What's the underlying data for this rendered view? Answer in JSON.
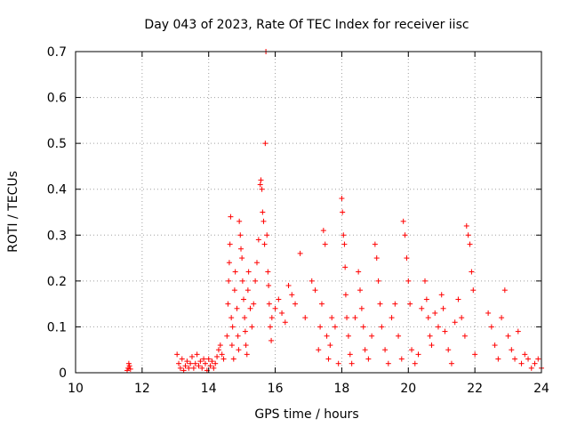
{
  "chart_data": {
    "type": "scatter",
    "title": "Day 043 of 2023, Rate Of TEC Index for receiver iisc",
    "xlabel": "GPS time / hours",
    "ylabel": "ROTI / TECUs",
    "xlim": [
      10,
      24
    ],
    "ylim": [
      0,
      0.7
    ],
    "xticks": [
      10,
      12,
      14,
      16,
      18,
      20,
      22,
      24
    ],
    "xtick_labels": [
      "10",
      "12",
      "14",
      "16",
      "18",
      "20",
      "22",
      "24"
    ],
    "yticks": [
      0,
      0.1,
      0.2,
      0.3,
      0.4,
      0.5,
      0.6,
      0.7
    ],
    "ytick_labels": [
      "0",
      "0.1",
      "0.2",
      "0.3",
      "0.4",
      "0.5",
      "0.6",
      "0.7"
    ],
    "grid": true,
    "marker": "+",
    "color": "#ff0000",
    "points": [
      [
        11.55,
        0.005
      ],
      [
        11.58,
        0.01
      ],
      [
        11.6,
        0.02
      ],
      [
        11.62,
        0.015
      ],
      [
        11.65,
        0.008
      ],
      [
        13.05,
        0.04
      ],
      [
        13.1,
        0.02
      ],
      [
        13.15,
        0.01
      ],
      [
        13.2,
        0.03
      ],
      [
        13.25,
        0.005
      ],
      [
        13.3,
        0.015
      ],
      [
        13.35,
        0.025
      ],
      [
        13.4,
        0.01
      ],
      [
        13.45,
        0.02
      ],
      [
        13.5,
        0.035
      ],
      [
        13.55,
        0.01
      ],
      [
        13.6,
        0.02
      ],
      [
        13.65,
        0.04
      ],
      [
        13.7,
        0.015
      ],
      [
        13.75,
        0.025
      ],
      [
        13.8,
        0.01
      ],
      [
        13.85,
        0.03
      ],
      [
        13.9,
        0.02
      ],
      [
        13.95,
        0.005
      ],
      [
        14.0,
        0.03
      ],
      [
        14.05,
        0.015
      ],
      [
        14.1,
        0.025
      ],
      [
        14.15,
        0.01
      ],
      [
        14.2,
        0.02
      ],
      [
        14.25,
        0.035
      ],
      [
        14.3,
        0.05
      ],
      [
        14.35,
        0.06
      ],
      [
        14.4,
        0.04
      ],
      [
        14.45,
        0.03
      ],
      [
        14.55,
        0.08
      ],
      [
        14.58,
        0.15
      ],
      [
        14.6,
        0.2
      ],
      [
        14.62,
        0.24
      ],
      [
        14.64,
        0.28
      ],
      [
        14.66,
        0.34
      ],
      [
        14.68,
        0.12
      ],
      [
        14.7,
        0.06
      ],
      [
        14.72,
        0.1
      ],
      [
        14.75,
        0.03
      ],
      [
        14.78,
        0.18
      ],
      [
        14.8,
        0.22
      ],
      [
        14.85,
        0.14
      ],
      [
        14.88,
        0.08
      ],
      [
        14.9,
        0.05
      ],
      [
        14.92,
        0.33
      ],
      [
        14.95,
        0.3
      ],
      [
        14.97,
        0.27
      ],
      [
        15.0,
        0.25
      ],
      [
        15.02,
        0.2
      ],
      [
        15.05,
        0.16
      ],
      [
        15.08,
        0.12
      ],
      [
        15.1,
        0.09
      ],
      [
        15.12,
        0.06
      ],
      [
        15.15,
        0.04
      ],
      [
        15.18,
        0.18
      ],
      [
        15.2,
        0.22
      ],
      [
        15.25,
        0.14
      ],
      [
        15.3,
        0.1
      ],
      [
        15.35,
        0.15
      ],
      [
        15.4,
        0.2
      ],
      [
        15.45,
        0.24
      ],
      [
        15.5,
        0.29
      ],
      [
        15.55,
        0.41
      ],
      [
        15.57,
        0.42
      ],
      [
        15.6,
        0.4
      ],
      [
        15.62,
        0.35
      ],
      [
        15.65,
        0.33
      ],
      [
        15.68,
        0.28
      ],
      [
        15.7,
        0.5
      ],
      [
        15.72,
        0.7
      ],
      [
        15.75,
        0.3
      ],
      [
        15.78,
        0.22
      ],
      [
        15.8,
        0.19
      ],
      [
        15.82,
        0.15
      ],
      [
        15.85,
        0.1
      ],
      [
        15.88,
        0.07
      ],
      [
        15.9,
        0.12
      ],
      [
        16.0,
        0.14
      ],
      [
        16.1,
        0.16
      ],
      [
        16.2,
        0.13
      ],
      [
        16.3,
        0.11
      ],
      [
        16.4,
        0.19
      ],
      [
        16.5,
        0.17
      ],
      [
        16.6,
        0.15
      ],
      [
        16.75,
        0.26
      ],
      [
        16.9,
        0.12
      ],
      [
        17.1,
        0.2
      ],
      [
        17.2,
        0.18
      ],
      [
        17.3,
        0.05
      ],
      [
        17.35,
        0.1
      ],
      [
        17.4,
        0.15
      ],
      [
        17.45,
        0.31
      ],
      [
        17.5,
        0.28
      ],
      [
        17.55,
        0.08
      ],
      [
        17.6,
        0.03
      ],
      [
        17.65,
        0.06
      ],
      [
        17.7,
        0.12
      ],
      [
        17.8,
        0.1
      ],
      [
        17.9,
        0.02
      ],
      [
        18.0,
        0.38
      ],
      [
        18.02,
        0.35
      ],
      [
        18.05,
        0.3
      ],
      [
        18.08,
        0.28
      ],
      [
        18.1,
        0.23
      ],
      [
        18.12,
        0.17
      ],
      [
        18.15,
        0.12
      ],
      [
        18.2,
        0.08
      ],
      [
        18.25,
        0.04
      ],
      [
        18.3,
        0.02
      ],
      [
        18.4,
        0.12
      ],
      [
        18.5,
        0.22
      ],
      [
        18.55,
        0.18
      ],
      [
        18.6,
        0.14
      ],
      [
        18.65,
        0.1
      ],
      [
        18.7,
        0.05
      ],
      [
        18.8,
        0.03
      ],
      [
        18.9,
        0.08
      ],
      [
        19.0,
        0.28
      ],
      [
        19.05,
        0.25
      ],
      [
        19.1,
        0.2
      ],
      [
        19.15,
        0.15
      ],
      [
        19.2,
        0.1
      ],
      [
        19.3,
        0.05
      ],
      [
        19.4,
        0.02
      ],
      [
        19.5,
        0.12
      ],
      [
        19.6,
        0.15
      ],
      [
        19.7,
        0.08
      ],
      [
        19.8,
        0.03
      ],
      [
        19.85,
        0.33
      ],
      [
        19.9,
        0.3
      ],
      [
        19.95,
        0.25
      ],
      [
        20.0,
        0.2
      ],
      [
        20.05,
        0.15
      ],
      [
        20.1,
        0.05
      ],
      [
        20.2,
        0.02
      ],
      [
        20.3,
        0.04
      ],
      [
        20.4,
        0.14
      ],
      [
        20.5,
        0.2
      ],
      [
        20.55,
        0.16
      ],
      [
        20.6,
        0.12
      ],
      [
        20.65,
        0.08
      ],
      [
        20.7,
        0.06
      ],
      [
        20.8,
        0.13
      ],
      [
        20.9,
        0.1
      ],
      [
        21.0,
        0.17
      ],
      [
        21.05,
        0.14
      ],
      [
        21.1,
        0.09
      ],
      [
        21.2,
        0.05
      ],
      [
        21.3,
        0.02
      ],
      [
        21.4,
        0.11
      ],
      [
        21.5,
        0.16
      ],
      [
        21.6,
        0.12
      ],
      [
        21.7,
        0.08
      ],
      [
        21.75,
        0.32
      ],
      [
        21.8,
        0.3
      ],
      [
        21.85,
        0.28
      ],
      [
        21.9,
        0.22
      ],
      [
        21.95,
        0.18
      ],
      [
        22.0,
        0.04
      ],
      [
        22.4,
        0.13
      ],
      [
        22.5,
        0.1
      ],
      [
        22.6,
        0.06
      ],
      [
        22.7,
        0.03
      ],
      [
        22.8,
        0.12
      ],
      [
        22.9,
        0.18
      ],
      [
        23.0,
        0.08
      ],
      [
        23.1,
        0.05
      ],
      [
        23.2,
        0.03
      ],
      [
        23.3,
        0.09
      ],
      [
        23.4,
        0.02
      ],
      [
        23.5,
        0.04
      ],
      [
        23.6,
        0.03
      ],
      [
        23.7,
        0.01
      ],
      [
        23.8,
        0.02
      ],
      [
        23.9,
        0.03
      ],
      [
        24.0,
        0.01
      ]
    ]
  }
}
